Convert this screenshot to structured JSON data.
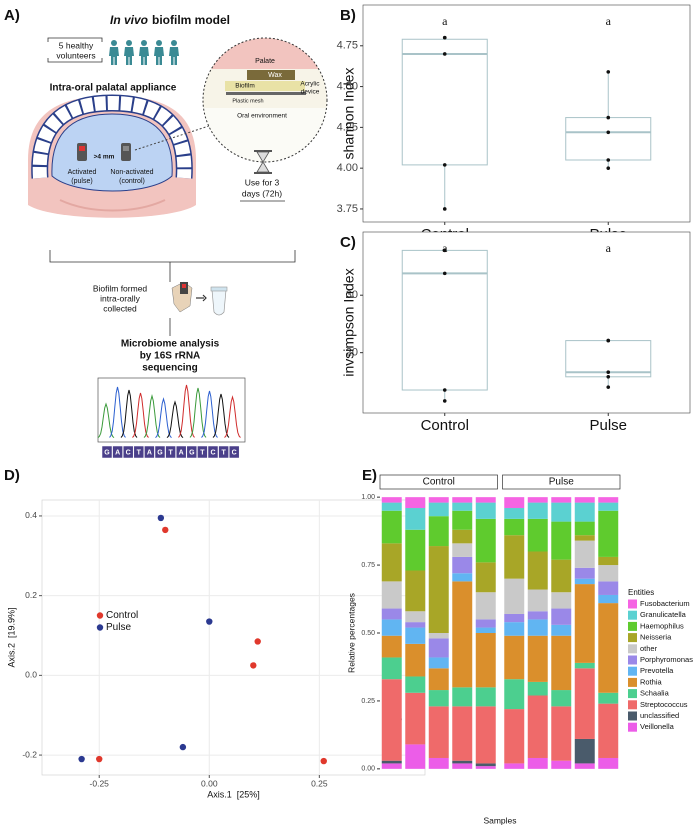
{
  "diagram": {
    "label": "A)",
    "title_italic": "In vivo",
    "title": "biofilm model",
    "volunteers": [
      "5 healthy",
      "volunteers"
    ],
    "appliance": "Intra-oral palatal appliance",
    "inset": {
      "palate": "Palate",
      "wax": "Wax",
      "biofilm": "Biofilm",
      "acrylic": [
        "Acrylic",
        "device"
      ],
      "mesh": "Plastic mesh",
      "oral": "Oral environment"
    },
    "distance": ">4 mm",
    "activated": [
      "Activated",
      "(pulse)"
    ],
    "control": [
      "Non-activated",
      "(control)"
    ],
    "duration": [
      "Use for 3",
      "days (72h)"
    ],
    "collected": [
      "Biofilm formed",
      "intra-orally",
      "collected"
    ],
    "analysis": [
      "Microbiome analysis",
      "by 16S rRNA",
      "sequencing"
    ],
    "sequence": [
      "G",
      "A",
      "C",
      "T",
      "A",
      "G",
      "T",
      "A",
      "G",
      "T",
      "C",
      "T",
      "C"
    ]
  },
  "chart_data": [
    {
      "type": "box",
      "label": "B)",
      "ylabel": "shannon Index",
      "categories": [
        "Control",
        "Pulse"
      ],
      "ylim": [
        3.67,
        5.0
      ],
      "yticks": [
        3.75,
        {
          "value": 4,
          "label": "4.00"
        },
        4.25,
        {
          "value": 4.5,
          "label": "4.50"
        },
        4.75
      ],
      "color": "#a9c3c8",
      "boxes": [
        {
          "min": 3.75,
          "q1": 4.02,
          "median": 4.7,
          "q3": 4.79,
          "max": 4.8,
          "points": [
            4.8,
            4.8,
            4.7,
            4.02,
            3.75
          ]
        },
        {
          "min": 4.0,
          "q1": 4.05,
          "median": 4.22,
          "q3": 4.31,
          "max": 4.59,
          "points": [
            4.59,
            4.31,
            4.22,
            4.05,
            4.0
          ]
        }
      ],
      "annotations": [
        "a",
        "a"
      ]
    },
    {
      "type": "box",
      "label": "C)",
      "ylabel": "invsimpson Index",
      "categories": [
        "Control",
        "Pulse"
      ],
      "ylim": [
        9.5,
        41
      ],
      "yticks": [
        20,
        30
      ],
      "color": "#a9c3c8",
      "boxes": [
        {
          "min": 11.6,
          "q1": 13.5,
          "median": 33.8,
          "q3": 37.8,
          "max": 37.8,
          "points": [
            37.8,
            37.8,
            33.8,
            13.5,
            11.6
          ]
        },
        {
          "min": 14.0,
          "q1": 15.8,
          "median": 16.6,
          "q3": 22.1,
          "max": 22.1,
          "points": [
            22.1,
            22.1,
            16.6,
            15.8,
            14.0
          ]
        }
      ],
      "annotations": [
        "a",
        "a"
      ]
    },
    {
      "type": "scatter",
      "label": "D)",
      "xlabel": "Axis.1  [25%]",
      "ylabel": "Axis.2  [19.9%]",
      "xlim": [
        -0.38,
        0.49
      ],
      "ylim": [
        -0.25,
        0.44
      ],
      "xticks": [
        -0.25,
        {
          "value": 0,
          "label": "0.00"
        },
        0.25
      ],
      "yticks": [
        -0.2,
        {
          "value": 0,
          "label": "0.0"
        },
        0.2,
        0.4
      ],
      "grid": true,
      "legend": "left",
      "series": [
        {
          "name": "Control",
          "color": "#e0382c",
          "x": [
            -0.1,
            0.11,
            0.1,
            -0.25,
            0.26
          ],
          "values": [
            0.365,
            0.085,
            0.025,
            -0.21,
            -0.215
          ]
        },
        {
          "name": "Pulse",
          "color": "#2b3990",
          "x": [
            -0.11,
            0.0,
            0.43,
            -0.29,
            -0.06
          ],
          "values": [
            0.395,
            0.135,
            -0.11,
            -0.21,
            -0.18
          ]
        }
      ]
    },
    {
      "type": "stacked_bar",
      "label": "E)",
      "ylabel": "Relative percentages",
      "xlabel": "Samples",
      "legend_title": "Entities",
      "ylim": [
        -0.03,
        1.03
      ],
      "yticks": [
        {
          "value": 0,
          "label": "0.00"
        },
        0.25,
        {
          "value": 0.5,
          "label": "0.50"
        },
        0.75,
        {
          "value": 1,
          "label": "1.00"
        }
      ],
      "facets": [
        {
          "title": "Control",
          "categories": [
            null,
            null,
            null,
            null,
            null
          ]
        },
        {
          "title": "Pulse",
          "categories": [
            null,
            null,
            null,
            null,
            null
          ]
        }
      ],
      "series": [
        {
          "name": "Fusobacterium",
          "color": "#f564e3",
          "values": [
            0.02,
            0.04,
            0.02,
            0.02,
            0.02,
            0.04,
            0.02,
            0.02,
            0.02,
            0.02
          ]
        },
        {
          "name": "Granulicatella",
          "color": "#5bd1d1",
          "values": [
            0.03,
            0.08,
            0.05,
            0.03,
            0.06,
            0.04,
            0.06,
            0.07,
            0.07,
            0.03
          ]
        },
        {
          "name": "Haemophilus",
          "color": "#5fcb2e",
          "values": [
            0.12,
            0.15,
            0.11,
            0.07,
            0.16,
            0.06,
            0.12,
            0.14,
            0.05,
            0.17
          ]
        },
        {
          "name": "Neisseria",
          "color": "#a8a627",
          "values": [
            0.14,
            0.15,
            0.32,
            0.05,
            0.11,
            0.16,
            0.14,
            0.12,
            0.02,
            0.03
          ]
        },
        {
          "name": "other",
          "color": "#c9c9c9",
          "values": [
            0.1,
            0.04,
            0.02,
            0.05,
            0.1,
            0.13,
            0.08,
            0.06,
            0.1,
            0.06
          ]
        },
        {
          "name": "Porphyromonas",
          "color": "#9a88e8",
          "values": [
            0.04,
            0.02,
            0.07,
            0.06,
            0.03,
            0.03,
            0.03,
            0.06,
            0.04,
            0.05
          ]
        },
        {
          "name": "Prevotella",
          "color": "#61b5f2",
          "values": [
            0.06,
            0.06,
            0.04,
            0.03,
            0.02,
            0.05,
            0.06,
            0.04,
            0.02,
            0.03
          ]
        },
        {
          "name": "Rothia",
          "color": "#da8f2c",
          "values": [
            0.08,
            0.12,
            0.08,
            0.39,
            0.2,
            0.16,
            0.17,
            0.2,
            0.29,
            0.33
          ]
        },
        {
          "name": "Schaalia",
          "color": "#4ccf8f",
          "values": [
            0.08,
            0.06,
            0.06,
            0.07,
            0.07,
            0.11,
            0.05,
            0.06,
            0.02,
            0.04
          ]
        },
        {
          "name": "Streptococcus",
          "color": "#ef6a6a",
          "values": [
            0.3,
            0.19,
            0.19,
            0.2,
            0.21,
            0.2,
            0.23,
            0.2,
            0.26,
            0.2
          ]
        },
        {
          "name": "unclassified",
          "color": "#4a5b6b",
          "values": [
            0.01,
            0,
            0,
            0.01,
            0.01,
            0,
            0,
            0,
            0.09,
            0
          ]
        },
        {
          "name": "Veillonella",
          "color": "#ec5de8",
          "values": [
            0.02,
            0.09,
            0.04,
            0.02,
            0.01,
            0.02,
            0.04,
            0.03,
            0.02,
            0.04
          ]
        }
      ]
    }
  ]
}
